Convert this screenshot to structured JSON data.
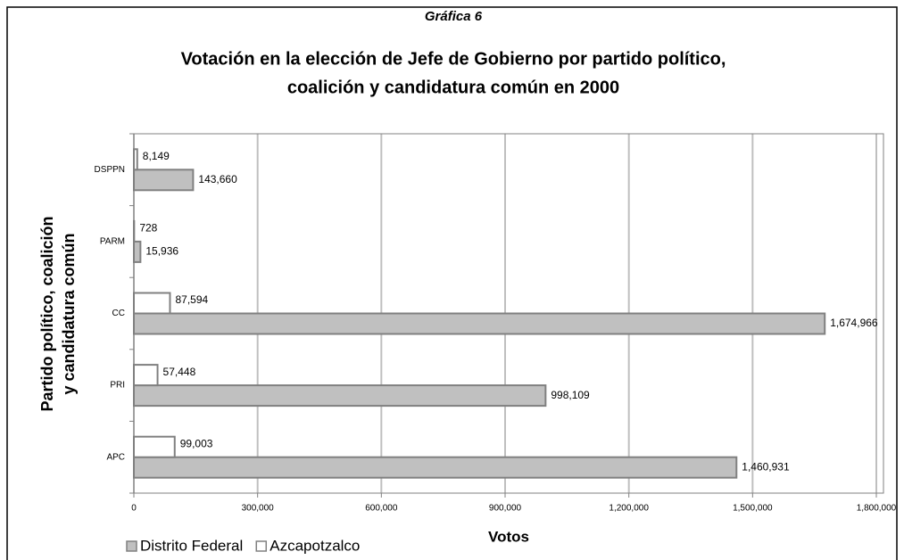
{
  "chart_data": {
    "type": "hbar",
    "supertitle": "Gráfica 6",
    "title": [
      "Votación en la elección de Jefe de Gobierno por partido político,",
      "coalición y candidatura común en 2000"
    ],
    "ylabel": [
      "Partido político, coalición",
      "y candidatura común"
    ],
    "xlabel": "Votos",
    "categories": [
      "DSPPN",
      "PARM",
      "CC",
      "PRI",
      "APC"
    ],
    "series": [
      {
        "name": "Distrito Federal",
        "color": "#c0c0c0",
        "values": [
          143660,
          15936,
          1674966,
          998109,
          1460931
        ],
        "value_labels": [
          "143,660",
          "15,936",
          "1,674,966",
          "998,109",
          "1,460,931"
        ]
      },
      {
        "name": "Azcapotzalco",
        "color": "#ffffff",
        "values": [
          8149,
          728,
          87594,
          57448,
          99003
        ],
        "value_labels": [
          "8,149",
          "728",
          "87,594",
          "57,448",
          "99,003"
        ]
      }
    ],
    "xlim": [
      0,
      1800000
    ],
    "xticks": [
      0,
      {
        "value": 300000,
        "label": "300,000"
      },
      {
        "value": 600000,
        "label": "600,000"
      },
      {
        "value": 900000,
        "label": "900,000"
      },
      {
        "value": 1200000,
        "label": "1,200,000"
      },
      {
        "value": 1500000,
        "label": "1,500,000"
      },
      {
        "value": 1800000,
        "label": "1,800,000"
      }
    ],
    "grid": true,
    "legend": "bottom-left"
  }
}
